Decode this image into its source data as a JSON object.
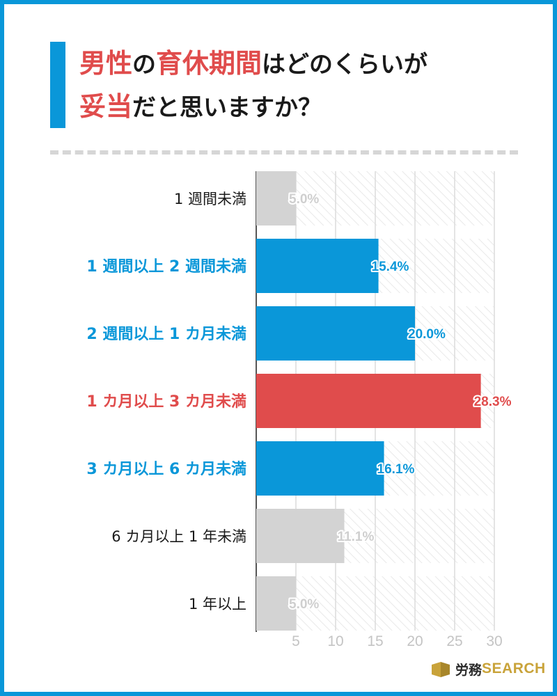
{
  "title": {
    "line1": [
      {
        "text": "男性",
        "highlight": true
      },
      {
        "text": "の",
        "highlight": false
      },
      {
        "text": "育休期間",
        "highlight": true
      },
      {
        "text": "はどのくらいが",
        "highlight": false
      }
    ],
    "line2": [
      {
        "text": "妥当",
        "highlight": true
      },
      {
        "text": "だと思いますか？",
        "highlight": false
      }
    ]
  },
  "colors": {
    "frame": "#0a97d9",
    "blue": "#0a97d9",
    "red": "#e04c4c",
    "gray": "#d3d3d3",
    "dark": "#1a1a1a",
    "brand_gold": "#c9a33a"
  },
  "chart_data": {
    "type": "bar",
    "orientation": "horizontal",
    "title": "男性の育休期間はどのくらいが妥当だと思いますか？",
    "unit": "%",
    "xlim": [
      0,
      30
    ],
    "xticks": [
      5,
      10,
      15,
      20,
      25,
      30
    ],
    "grid": true,
    "categories": [
      "1 週間未満",
      "1 週間以上 2 週間未満",
      "2 週間以上 1 カ月未満",
      "1 カ月以上 3 カ月未満",
      "3 カ月以上 6 カ月未満",
      "6 カ月以上 1 年未満",
      "1 年以上"
    ],
    "values": [
      5.0,
      15.4,
      20.0,
      28.3,
      16.1,
      11.1,
      5.0
    ],
    "value_labels": [
      "5.0%",
      "15.4%",
      "20.0%",
      "28.3%",
      "16.1%",
      "11.1%",
      "5.0%"
    ],
    "highlight": [
      "gray",
      "blue",
      "blue",
      "red",
      "blue",
      "gray",
      "gray"
    ]
  },
  "brand": {
    "ja": "労務",
    "en": "SEARCH"
  }
}
